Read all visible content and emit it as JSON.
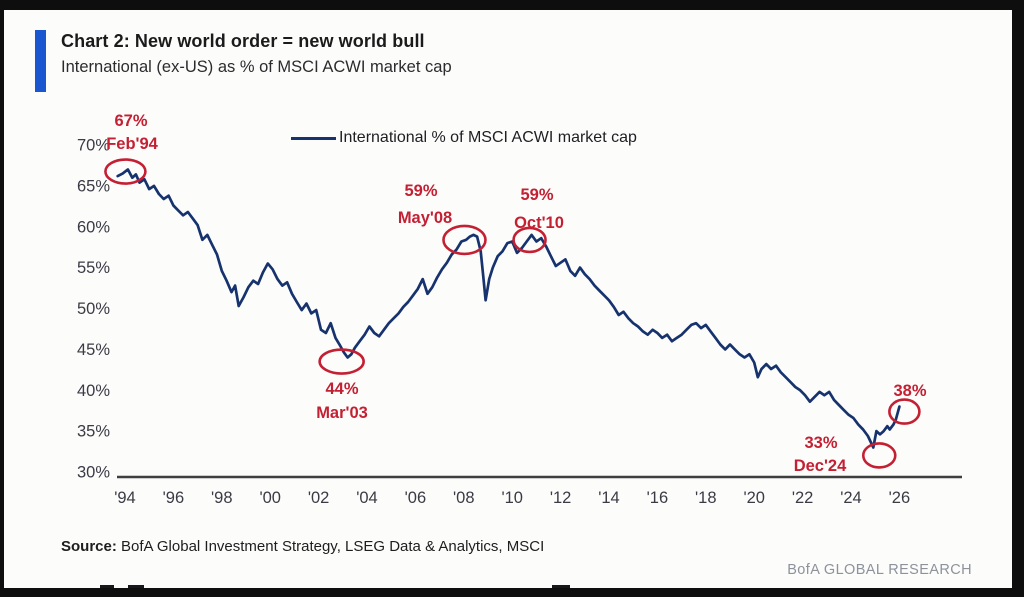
{
  "header": {
    "title": "Chart 2: New world order = new world bull",
    "subtitle": "International (ex-US) as % of MSCI ACWI market cap"
  },
  "legend": {
    "label": "International % of MSCI ACWI market cap"
  },
  "footer": {
    "source_label": "Source:",
    "source_text": " BofA Global Investment Strategy, LSEG Data & Analytics, MSCI",
    "brand": "BofA GLOBAL RESEARCH"
  },
  "colors": {
    "accent_bar": "#1a56cf",
    "line": "#17336e",
    "annotation_red": "#c42033",
    "axis_text": "#3b3b46",
    "axis_line": "#3f3f3f",
    "title_text": "#1b1b1b",
    "brand_text": "#8d929b"
  },
  "chart_data": {
    "type": "line",
    "title": "Chart 2: New world order = new world bull",
    "subtitle": "International (ex-US) as % of MSCI ACWI market cap",
    "legend": [
      "International % of MSCI ACWI market cap"
    ],
    "legend_position": "top",
    "grid": false,
    "xlabel": "",
    "ylabel": "",
    "xlim": [
      1993.7,
      2026.6
    ],
    "ylim": [
      30,
      70
    ],
    "x_tick_years": [
      1994,
      1996,
      1998,
      2000,
      2002,
      2004,
      2006,
      2008,
      2010,
      2012,
      2014,
      2016,
      2018,
      2020,
      2022,
      2024,
      2026
    ],
    "x_ticks": [
      "'94",
      "'96",
      "'98",
      "'00",
      "'02",
      "'04",
      "'06",
      "'08",
      "'10",
      "'12",
      "'14",
      "'16",
      "'18",
      "'20",
      "'22",
      "'24",
      "'26"
    ],
    "y_tick_values": [
      70,
      65,
      60,
      55,
      50,
      45,
      40,
      35,
      30
    ],
    "y_ticks": [
      "70%",
      "65%",
      "60%",
      "55%",
      "50%",
      "45%",
      "40%",
      "35%",
      "30%"
    ],
    "annotations": [
      {
        "label": "67%",
        "date": "Feb'94",
        "at": [
          1994.1,
          67.0
        ]
      },
      {
        "label": "59%",
        "date": "May'08",
        "at": [
          2008.4,
          59.0
        ]
      },
      {
        "label": "59%",
        "date": "Oct'10",
        "at": [
          2010.8,
          59.0
        ]
      },
      {
        "label": "44%",
        "date": "Mar'03",
        "at": [
          2003.2,
          44.0
        ]
      },
      {
        "label": "33%",
        "date": "Dec'24",
        "at": [
          2024.92,
          33.0
        ]
      },
      {
        "label": "38%",
        "date": "",
        "at": [
          2026.0,
          38.0
        ]
      }
    ],
    "series": [
      {
        "name": "International % of MSCI ACWI market cap",
        "points": [
          [
            1993.7,
            66.2
          ],
          [
            1993.9,
            66.5
          ],
          [
            1994.12,
            67.0
          ],
          [
            1994.3,
            66.0
          ],
          [
            1994.45,
            66.4
          ],
          [
            1994.6,
            65.4
          ],
          [
            1994.8,
            65.8
          ],
          [
            1995.0,
            64.6
          ],
          [
            1995.2,
            65.0
          ],
          [
            1995.4,
            64.0
          ],
          [
            1995.6,
            63.4
          ],
          [
            1995.8,
            63.8
          ],
          [
            1996.0,
            62.6
          ],
          [
            1996.2,
            62.0
          ],
          [
            1996.4,
            61.4
          ],
          [
            1996.6,
            61.8
          ],
          [
            1996.8,
            61.0
          ],
          [
            1997.0,
            60.2
          ],
          [
            1997.2,
            58.4
          ],
          [
            1997.4,
            59.0
          ],
          [
            1997.6,
            57.8
          ],
          [
            1997.8,
            56.6
          ],
          [
            1998.0,
            54.6
          ],
          [
            1998.2,
            53.4
          ],
          [
            1998.4,
            52.0
          ],
          [
            1998.55,
            52.8
          ],
          [
            1998.7,
            50.3
          ],
          [
            1998.9,
            51.4
          ],
          [
            1999.1,
            52.6
          ],
          [
            1999.3,
            53.4
          ],
          [
            1999.5,
            53.0
          ],
          [
            1999.7,
            54.4
          ],
          [
            1999.9,
            55.5
          ],
          [
            2000.1,
            54.8
          ],
          [
            2000.3,
            53.6
          ],
          [
            2000.5,
            52.8
          ],
          [
            2000.7,
            53.2
          ],
          [
            2000.9,
            51.8
          ],
          [
            2001.1,
            50.8
          ],
          [
            2001.3,
            49.8
          ],
          [
            2001.5,
            50.6
          ],
          [
            2001.7,
            49.4
          ],
          [
            2001.9,
            49.8
          ],
          [
            2002.1,
            47.4
          ],
          [
            2002.3,
            47.0
          ],
          [
            2002.5,
            48.2
          ],
          [
            2002.7,
            46.4
          ],
          [
            2002.9,
            45.4
          ],
          [
            2003.05,
            44.6
          ],
          [
            2003.2,
            44.0
          ],
          [
            2003.35,
            44.4
          ],
          [
            2003.5,
            45.2
          ],
          [
            2003.7,
            46.0
          ],
          [
            2003.9,
            46.8
          ],
          [
            2004.1,
            47.8
          ],
          [
            2004.3,
            47.0
          ],
          [
            2004.5,
            46.6
          ],
          [
            2004.7,
            47.4
          ],
          [
            2004.9,
            48.2
          ],
          [
            2005.1,
            48.8
          ],
          [
            2005.3,
            49.4
          ],
          [
            2005.5,
            50.2
          ],
          [
            2005.7,
            50.8
          ],
          [
            2005.9,
            51.6
          ],
          [
            2006.1,
            52.4
          ],
          [
            2006.3,
            53.6
          ],
          [
            2006.5,
            51.8
          ],
          [
            2006.7,
            52.6
          ],
          [
            2006.9,
            53.8
          ],
          [
            2007.1,
            54.8
          ],
          [
            2007.3,
            55.6
          ],
          [
            2007.5,
            56.6
          ],
          [
            2007.7,
            57.2
          ],
          [
            2007.9,
            58.2
          ],
          [
            2008.1,
            58.4
          ],
          [
            2008.25,
            58.8
          ],
          [
            2008.4,
            59.0
          ],
          [
            2008.55,
            58.8
          ],
          [
            2008.7,
            57.0
          ],
          [
            2008.8,
            54.0
          ],
          [
            2008.9,
            51.0
          ],
          [
            2009.05,
            53.6
          ],
          [
            2009.2,
            55.0
          ],
          [
            2009.4,
            56.4
          ],
          [
            2009.6,
            57.0
          ],
          [
            2009.8,
            58.0
          ],
          [
            2010.0,
            58.2
          ],
          [
            2010.2,
            56.8
          ],
          [
            2010.4,
            57.4
          ],
          [
            2010.6,
            58.2
          ],
          [
            2010.8,
            59.0
          ],
          [
            2011.0,
            58.2
          ],
          [
            2011.2,
            58.6
          ],
          [
            2011.4,
            57.6
          ],
          [
            2011.6,
            56.4
          ],
          [
            2011.8,
            55.2
          ],
          [
            2012.0,
            55.6
          ],
          [
            2012.2,
            56.0
          ],
          [
            2012.4,
            54.6
          ],
          [
            2012.6,
            54.0
          ],
          [
            2012.8,
            55.0
          ],
          [
            2013.0,
            54.2
          ],
          [
            2013.2,
            53.6
          ],
          [
            2013.4,
            52.8
          ],
          [
            2013.6,
            52.2
          ],
          [
            2013.8,
            51.6
          ],
          [
            2014.0,
            51.0
          ],
          [
            2014.2,
            50.2
          ],
          [
            2014.4,
            49.2
          ],
          [
            2014.6,
            49.6
          ],
          [
            2014.8,
            48.8
          ],
          [
            2015.0,
            48.2
          ],
          [
            2015.2,
            47.8
          ],
          [
            2015.4,
            47.2
          ],
          [
            2015.6,
            46.8
          ],
          [
            2015.8,
            47.4
          ],
          [
            2016.0,
            47.0
          ],
          [
            2016.2,
            46.4
          ],
          [
            2016.4,
            46.8
          ],
          [
            2016.6,
            46.0
          ],
          [
            2016.8,
            46.4
          ],
          [
            2017.0,
            46.8
          ],
          [
            2017.2,
            47.4
          ],
          [
            2017.4,
            48.0
          ],
          [
            2017.6,
            48.2
          ],
          [
            2017.8,
            47.6
          ],
          [
            2018.0,
            48.0
          ],
          [
            2018.2,
            47.2
          ],
          [
            2018.4,
            46.4
          ],
          [
            2018.6,
            45.6
          ],
          [
            2018.8,
            45.0
          ],
          [
            2019.0,
            45.6
          ],
          [
            2019.2,
            45.0
          ],
          [
            2019.4,
            44.4
          ],
          [
            2019.6,
            44.0
          ],
          [
            2019.8,
            44.4
          ],
          [
            2020.0,
            43.4
          ],
          [
            2020.15,
            41.6
          ],
          [
            2020.3,
            42.6
          ],
          [
            2020.5,
            43.2
          ],
          [
            2020.7,
            42.6
          ],
          [
            2020.9,
            43.0
          ],
          [
            2021.1,
            42.2
          ],
          [
            2021.3,
            41.6
          ],
          [
            2021.5,
            41.0
          ],
          [
            2021.7,
            40.4
          ],
          [
            2021.9,
            40.0
          ],
          [
            2022.1,
            39.4
          ],
          [
            2022.3,
            38.6
          ],
          [
            2022.5,
            39.2
          ],
          [
            2022.7,
            39.8
          ],
          [
            2022.9,
            39.4
          ],
          [
            2023.1,
            39.8
          ],
          [
            2023.3,
            38.8
          ],
          [
            2023.5,
            38.2
          ],
          [
            2023.7,
            37.6
          ],
          [
            2023.9,
            37.0
          ],
          [
            2024.1,
            36.6
          ],
          [
            2024.3,
            35.8
          ],
          [
            2024.5,
            35.2
          ],
          [
            2024.7,
            34.4
          ],
          [
            2024.92,
            33.0
          ],
          [
            2025.05,
            35.0
          ],
          [
            2025.2,
            34.6
          ],
          [
            2025.35,
            35.0
          ],
          [
            2025.5,
            35.6
          ],
          [
            2025.6,
            35.2
          ],
          [
            2025.75,
            35.8
          ],
          [
            2025.85,
            36.4
          ],
          [
            2026.0,
            38.0
          ]
        ]
      }
    ]
  }
}
